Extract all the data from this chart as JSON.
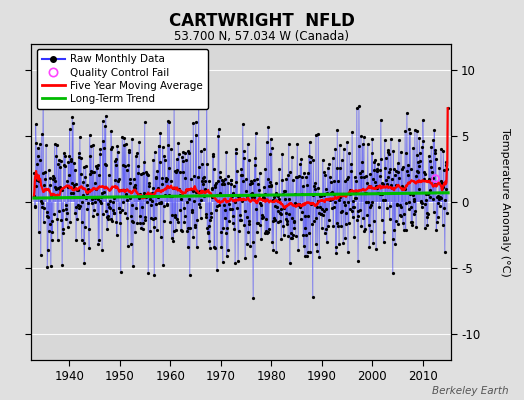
{
  "title": "CARTWRIGHT  NFLD",
  "subtitle": "53.700 N, 57.034 W (Canada)",
  "ylabel": "Temperature Anomaly (°C)",
  "credit": "Berkeley Earth",
  "year_start": 1933,
  "year_end": 2014,
  "ylim": [
    -12,
    12
  ],
  "yticks": [
    -10,
    -5,
    0,
    5,
    10
  ],
  "xticks": [
    1940,
    1950,
    1960,
    1970,
    1980,
    1990,
    2000,
    2010
  ],
  "raw_color": "#3333ff",
  "moving_avg_color": "#ff0000",
  "trend_color": "#00bb00",
  "qc_fail_color": "#ff44ff",
  "background_color": "#d8d8d8",
  "fig_facecolor": "#e0e0e0",
  "seed": 12345
}
